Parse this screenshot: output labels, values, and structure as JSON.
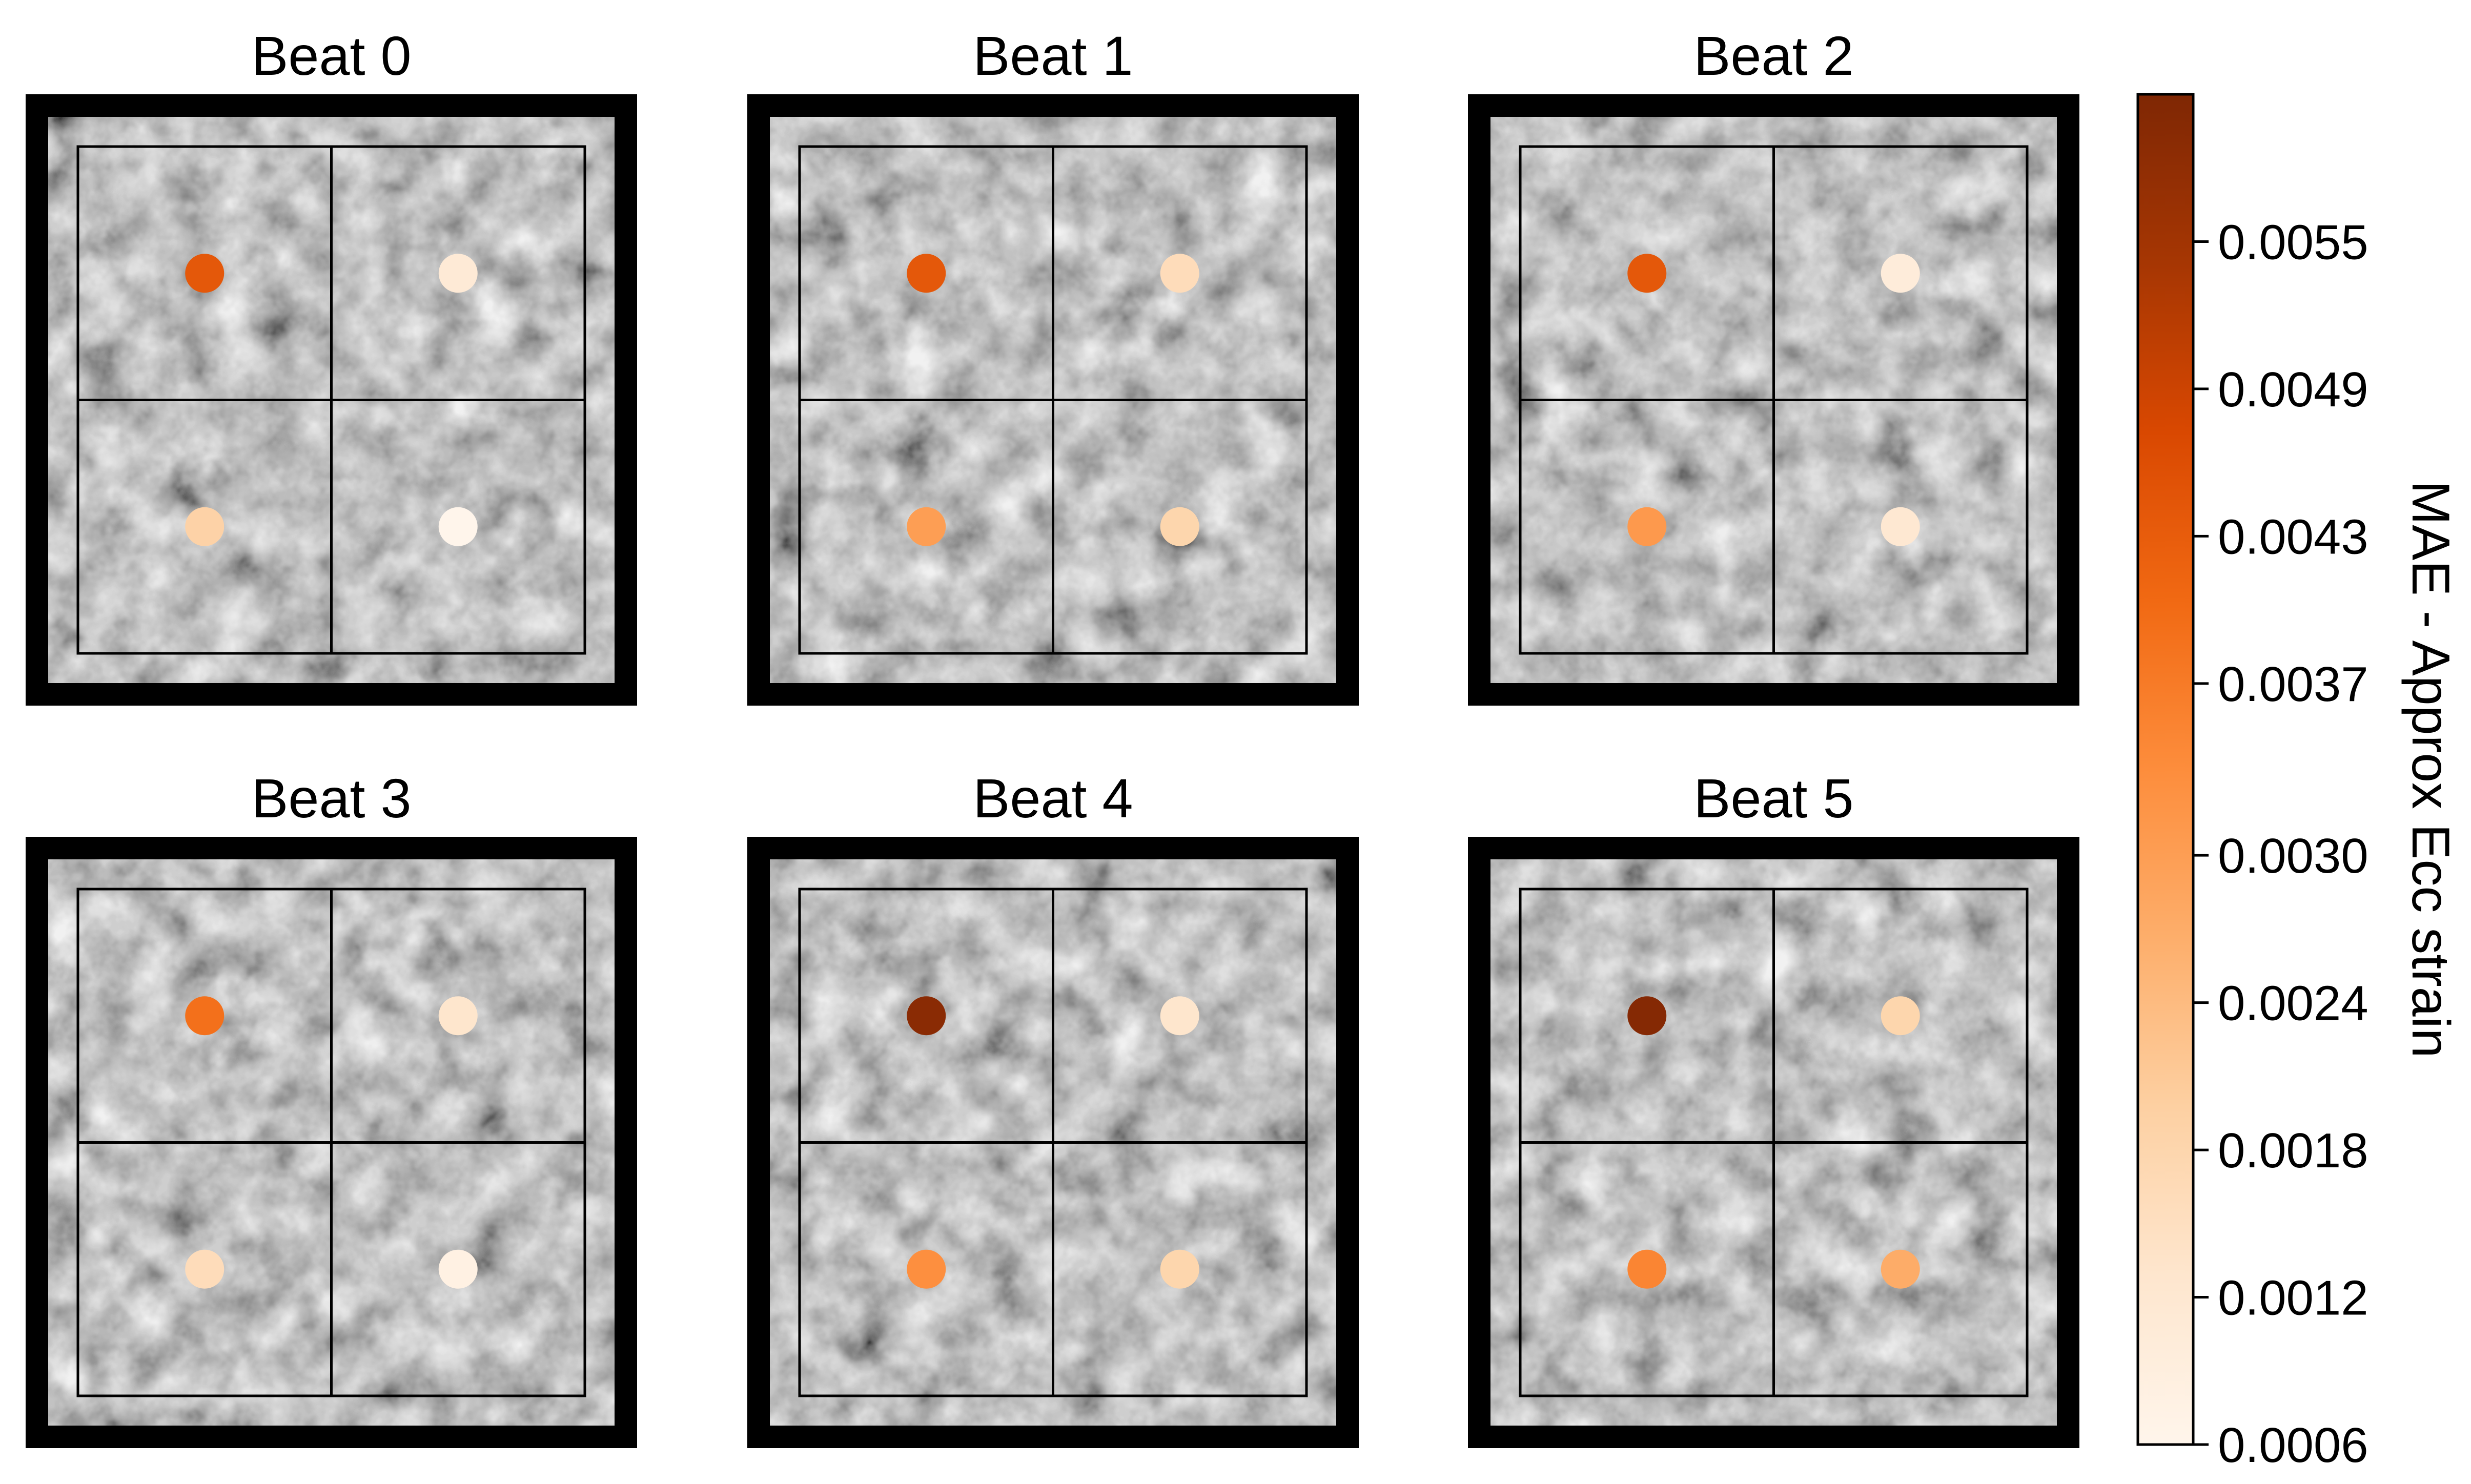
{
  "chart_data": {
    "type": "heatmap",
    "description_of_grid": "2 rows x 3 columns of panels, each a 2x2 grid of regions with one colored marker per region",
    "panels": [
      {
        "title": "Beat 0",
        "values": [
          [
            0.0044,
            0.0011
          ],
          [
            0.0019,
            0.0006
          ]
        ]
      },
      {
        "title": "Beat 1",
        "values": [
          [
            0.0044,
            0.0016
          ],
          [
            0.003,
            0.0018
          ]
        ]
      },
      {
        "title": "Beat 2",
        "values": [
          [
            0.0044,
            0.001
          ],
          [
            0.0031,
            0.0012
          ]
        ]
      },
      {
        "title": "Beat 3",
        "values": [
          [
            0.0039,
            0.0013
          ],
          [
            0.0016,
            0.0008
          ]
        ]
      },
      {
        "title": "Beat 4",
        "values": [
          [
            0.0059,
            0.0013
          ],
          [
            0.0033,
            0.0018
          ]
        ]
      },
      {
        "title": "Beat 5",
        "values": [
          [
            0.006,
            0.0018
          ],
          [
            0.0035,
            0.0027
          ]
        ]
      }
    ],
    "colorbar": {
      "label": "MAE - Approx Ecc strain",
      "colormap": "Oranges",
      "vmin": 0.0006,
      "vmax": 0.0061,
      "ticks": [
        0.0006,
        0.0012,
        0.0018,
        0.0024,
        0.003,
        0.0037,
        0.0043,
        0.0049,
        0.0055
      ],
      "tick_labels": [
        "0.0006",
        "0.0012",
        "0.0018",
        "0.0024",
        "0.0030",
        "0.0037",
        "0.0043",
        "0.0049",
        "0.0055"
      ]
    },
    "colors": {
      "panel_frame": "#000000",
      "grid_lines": "#000000",
      "background_tissue": "#8c8c8c",
      "cmap_low": "#fff5eb",
      "cmap_high": "#7f2704"
    }
  }
}
